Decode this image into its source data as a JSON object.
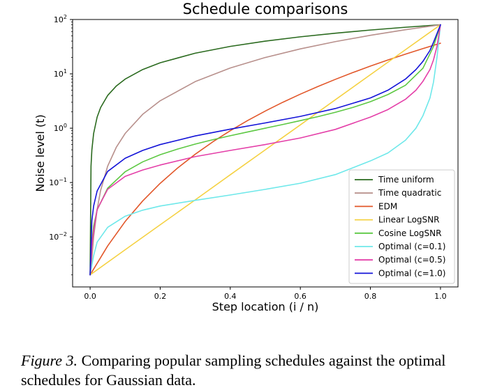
{
  "chart_data": {
    "type": "line",
    "title": "Schedule comparisons",
    "xlabel": "Step location (i / n)",
    "ylabel": "Noise level (t)",
    "xlim": [
      -0.05,
      1.05
    ],
    "ylim": [
      0.0012,
      100
    ],
    "yscale": "log",
    "xticks": [
      0.0,
      0.2,
      0.4,
      0.6,
      0.8,
      1.0
    ],
    "xtick_labels": [
      "0.0",
      "0.2",
      "0.4",
      "0.6",
      "0.8",
      "1.0"
    ],
    "yticks": [
      0.01,
      0.1,
      1,
      10,
      100
    ],
    "ytick_bases": [
      "10",
      "10",
      "10",
      "10",
      "10"
    ],
    "ytick_exps": [
      "−2",
      "−1",
      "0",
      "1",
      "2"
    ],
    "grid": false,
    "legend_position": "lower right",
    "series": [
      {
        "name": "Time uniform",
        "color": "#2a6a1e",
        "x": [
          0,
          0.0025,
          0.005,
          0.01,
          0.02,
          0.03,
          0.05,
          0.075,
          0.1,
          0.15,
          0.2,
          0.3,
          0.4,
          0.5,
          0.6,
          0.7,
          0.8,
          0.9,
          1.0
        ],
        "y": [
          0.002,
          0.2,
          0.4,
          0.8,
          1.6,
          2.4,
          4,
          6,
          8,
          12,
          16,
          24,
          32,
          40,
          48,
          56,
          64,
          72,
          80
        ]
      },
      {
        "name": "Time quadratic",
        "color": "#b8908c",
        "x": [
          0,
          0.005,
          0.01,
          0.02,
          0.03,
          0.05,
          0.075,
          0.1,
          0.15,
          0.2,
          0.3,
          0.4,
          0.5,
          0.6,
          0.7,
          0.8,
          0.9,
          1.0
        ],
        "y": [
          0.002,
          0.004,
          0.01,
          0.032,
          0.072,
          0.2,
          0.45,
          0.8,
          1.8,
          3.2,
          7.2,
          12.8,
          20,
          28.8,
          39.2,
          51.2,
          64.8,
          80
        ]
      },
      {
        "name": "EDM",
        "color": "#e2572a",
        "x": [
          0,
          0.05,
          0.1,
          0.15,
          0.2,
          0.25,
          0.3,
          0.35,
          0.4,
          0.45,
          0.5,
          0.55,
          0.6,
          0.65,
          0.7,
          0.75,
          0.8,
          0.85,
          0.9,
          0.95,
          1.0
        ],
        "y": [
          0.002,
          0.0068,
          0.0192,
          0.0458,
          0.0967,
          0.186,
          0.332,
          0.56,
          0.9,
          1.39,
          2.07,
          3.0,
          4.23,
          5.84,
          7.92,
          10.57,
          13.88,
          17.99,
          23.03,
          29.17,
          36.6
        ]
      },
      {
        "name": "Linear LogSNR",
        "color": "#f5d142",
        "x": [
          0,
          0.1,
          0.2,
          0.3,
          0.4,
          0.5,
          0.6,
          0.7,
          0.8,
          0.9,
          1.0
        ],
        "y": [
          0.002,
          0.0058,
          0.0167,
          0.048,
          0.139,
          0.4,
          1.15,
          3.34,
          9.64,
          27.8,
          80
        ]
      },
      {
        "name": "Cosine LogSNR",
        "color": "#5cc842",
        "x": [
          0,
          0.005,
          0.01,
          0.02,
          0.05,
          0.1,
          0.15,
          0.2,
          0.25,
          0.3,
          0.35,
          0.4,
          0.45,
          0.5,
          0.55,
          0.6,
          0.65,
          0.7,
          0.75,
          0.8,
          0.85,
          0.9,
          0.95,
          0.98,
          1.0
        ],
        "y": [
          0.002,
          0.0079,
          0.0157,
          0.0314,
          0.0787,
          0.158,
          0.24,
          0.325,
          0.414,
          0.51,
          0.613,
          0.727,
          0.854,
          1.0,
          1.17,
          1.38,
          1.63,
          1.96,
          2.41,
          3.08,
          4.16,
          6.16,
          12.7,
          31.8,
          80
        ]
      },
      {
        "name": "Optimal (c=0.1)",
        "color": "#6ee8ea",
        "x": [
          0,
          0.01,
          0.02,
          0.05,
          0.1,
          0.15,
          0.2,
          0.3,
          0.4,
          0.5,
          0.6,
          0.7,
          0.8,
          0.85,
          0.9,
          0.93,
          0.95,
          0.97,
          0.98,
          0.99,
          1.0
        ],
        "y": [
          0.002,
          0.0045,
          0.008,
          0.015,
          0.024,
          0.031,
          0.037,
          0.047,
          0.059,
          0.075,
          0.097,
          0.14,
          0.25,
          0.35,
          0.6,
          1.0,
          1.7,
          3.6,
          7.0,
          20,
          80
        ]
      },
      {
        "name": "Optimal (c=0.5)",
        "color": "#e43fa8",
        "x": [
          0,
          0.005,
          0.01,
          0.02,
          0.05,
          0.1,
          0.15,
          0.2,
          0.3,
          0.4,
          0.5,
          0.6,
          0.7,
          0.8,
          0.85,
          0.9,
          0.93,
          0.95,
          0.97,
          0.98,
          0.99,
          1.0
        ],
        "y": [
          0.002,
          0.007,
          0.013,
          0.032,
          0.075,
          0.13,
          0.17,
          0.21,
          0.3,
          0.39,
          0.5,
          0.66,
          0.95,
          1.6,
          2.2,
          3.4,
          5.0,
          7.3,
          12,
          18,
          32,
          80
        ]
      },
      {
        "name": "Optimal (c=1.0)",
        "color": "#1414d8",
        "x": [
          0,
          0.005,
          0.01,
          0.02,
          0.05,
          0.1,
          0.15,
          0.2,
          0.3,
          0.4,
          0.5,
          0.6,
          0.7,
          0.8,
          0.85,
          0.9,
          0.93,
          0.95,
          0.97,
          0.98,
          0.99,
          1.0
        ],
        "y": [
          0.002,
          0.02,
          0.037,
          0.07,
          0.16,
          0.28,
          0.39,
          0.5,
          0.72,
          0.96,
          1.25,
          1.65,
          2.3,
          3.6,
          5.0,
          8.0,
          12,
          17,
          27,
          38,
          55,
          80
        ]
      }
    ]
  },
  "caption": {
    "label": "Figure 3.",
    "text": "Comparing popular sampling schedules against the optimal schedules for Gaussian data."
  }
}
